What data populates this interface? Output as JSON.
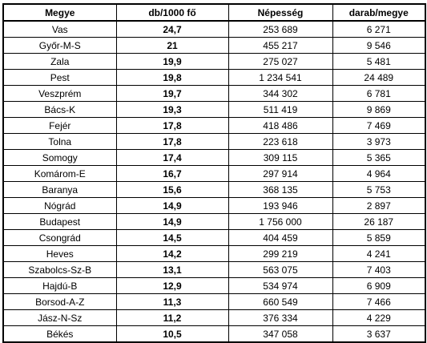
{
  "table": {
    "headers": [
      "Megye",
      "db/1000 fő",
      "Népesség",
      "darab/megye"
    ],
    "rows": [
      [
        "Vas",
        "24,7",
        "253 689",
        "6 271"
      ],
      [
        "Győr-M-S",
        "21",
        "455 217",
        "9 546"
      ],
      [
        "Zala",
        "19,9",
        "275 027",
        "5 481"
      ],
      [
        "Pest",
        "19,8",
        "1 234 541",
        "24 489"
      ],
      [
        "Veszprém",
        "19,7",
        "344 302",
        "6 781"
      ],
      [
        "Bács-K",
        "19,3",
        "511 419",
        "9 869"
      ],
      [
        "Fejér",
        "17,8",
        "418 486",
        "7 469"
      ],
      [
        "Tolna",
        "17,8",
        "223 618",
        "3 973"
      ],
      [
        "Somogy",
        "17,4",
        "309 115",
        "5 365"
      ],
      [
        "Komárom-E",
        "16,7",
        "297 914",
        "4 964"
      ],
      [
        "Baranya",
        "15,6",
        "368 135",
        "5 753"
      ],
      [
        "Nógrád",
        "14,9",
        "193 946",
        "2 897"
      ],
      [
        "Budapest",
        "14,9",
        "1 756 000",
        "26 187"
      ],
      [
        "Csongrád",
        "14,5",
        "404 459",
        "5 859"
      ],
      [
        "Heves",
        "14,2",
        "299 219",
        "4 241"
      ],
      [
        "Szabolcs-Sz-B",
        "13,1",
        "563 075",
        "7 403"
      ],
      [
        "Hajdú-B",
        "12,9",
        "534 974",
        "6 909"
      ],
      [
        "Borsod-A-Z",
        "11,3",
        "660 549",
        "7 466"
      ],
      [
        "Jász-N-Sz",
        "11,2",
        "376 334",
        "4 229"
      ],
      [
        "Békés",
        "10,5",
        "347 058",
        "3 637"
      ]
    ]
  }
}
